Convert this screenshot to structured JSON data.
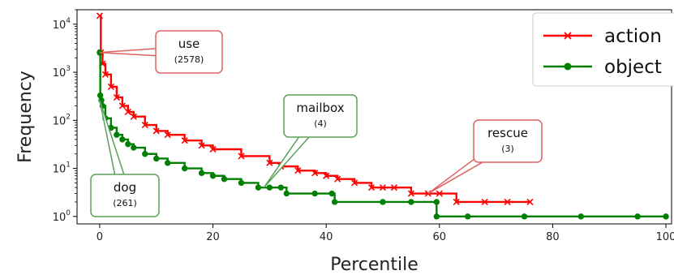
{
  "chart_data": {
    "type": "line",
    "title": "",
    "xlabel": "Percentile",
    "ylabel": "Frequency",
    "xlim": [
      -4,
      101
    ],
    "ylim": [
      0.7,
      20000
    ],
    "yscale": "log",
    "x_ticks": [
      0,
      20,
      40,
      60,
      80,
      100
    ],
    "y_ticks": [
      {
        "value": 1,
        "label": "10",
        "exp": "0"
      },
      {
        "value": 10,
        "label": "10",
        "exp": "1"
      },
      {
        "value": 100,
        "label": "10",
        "exp": "2"
      },
      {
        "value": 1000,
        "label": "10",
        "exp": "3"
      },
      {
        "value": 10000,
        "label": "10",
        "exp": "4"
      }
    ],
    "grid": false,
    "legend": {
      "position": "top-right"
    },
    "series": [
      {
        "name": "action",
        "color": "#ff0000",
        "marker": "x",
        "points": [
          [
            0,
            15000
          ],
          [
            0.2,
            2578
          ],
          [
            0.5,
            1500
          ],
          [
            1,
            900
          ],
          [
            2,
            500
          ],
          [
            3,
            300
          ],
          [
            4,
            200
          ],
          [
            5,
            150
          ],
          [
            6,
            120
          ],
          [
            8,
            80
          ],
          [
            10,
            60
          ],
          [
            12,
            50
          ],
          [
            15,
            38
          ],
          [
            18,
            30
          ],
          [
            20,
            25
          ],
          [
            25,
            18
          ],
          [
            30,
            13
          ],
          [
            32,
            11
          ],
          [
            35,
            9
          ],
          [
            38,
            8
          ],
          [
            40,
            7
          ],
          [
            42,
            6
          ],
          [
            45,
            5
          ],
          [
            48,
            4
          ],
          [
            50,
            4
          ],
          [
            52,
            4
          ],
          [
            55,
            3
          ],
          [
            58,
            3
          ],
          [
            60,
            3
          ],
          [
            63,
            2
          ],
          [
            68,
            2
          ],
          [
            72,
            2
          ],
          [
            76,
            2
          ]
        ]
      },
      {
        "name": "object",
        "color": "#008000",
        "marker": "o",
        "points": [
          [
            0,
            2578
          ],
          [
            0.1,
            330
          ],
          [
            0.3,
            261
          ],
          [
            0.5,
            200
          ],
          [
            1,
            110
          ],
          [
            2,
            70
          ],
          [
            3,
            50
          ],
          [
            4,
            40
          ],
          [
            5,
            32
          ],
          [
            6,
            27
          ],
          [
            8,
            20
          ],
          [
            10,
            16
          ],
          [
            12,
            13
          ],
          [
            15,
            10
          ],
          [
            18,
            8
          ],
          [
            20,
            7
          ],
          [
            22,
            6
          ],
          [
            25,
            5
          ],
          [
            28,
            4
          ],
          [
            30,
            4
          ],
          [
            32,
            4
          ],
          [
            33,
            3
          ],
          [
            38,
            3
          ],
          [
            41,
            3
          ],
          [
            41.5,
            2
          ],
          [
            50,
            2
          ],
          [
            55,
            2
          ],
          [
            59.5,
            2
          ],
          [
            59.5,
            1
          ],
          [
            65,
            1
          ],
          [
            75,
            1
          ],
          [
            85,
            1
          ],
          [
            95,
            1
          ],
          [
            100,
            1
          ]
        ]
      }
    ],
    "annotations": [
      {
        "word": "use",
        "count": "(2578)",
        "x": 0,
        "y": 2578,
        "series": "object"
      },
      {
        "word": "dog",
        "count": "(261)",
        "x": 0,
        "y": 261,
        "series": "object"
      },
      {
        "word": "mailbox",
        "count": "(4)",
        "x": 29,
        "y": 4,
        "series": "object"
      },
      {
        "word": "rescue",
        "count": "(3)",
        "x": 58,
        "y": 3,
        "series": "action"
      }
    ]
  }
}
